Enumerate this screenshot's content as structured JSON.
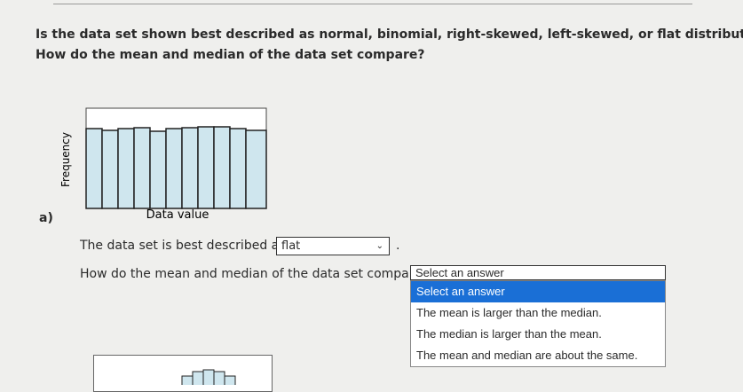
{
  "question": {
    "line1": "Is the data set shown best described as normal, binomial, right-skewed, left-skewed, or flat distribution?",
    "line2": "How do the mean and median of the data set compare?"
  },
  "histogram": {
    "y_label": "Frequency",
    "x_label": "Data value"
  },
  "part": "a)",
  "answer1": {
    "prompt": "The data set is best described as",
    "selected": "flat",
    "end": "."
  },
  "answer2": {
    "prompt": "How do the mean and median of the data set compare?",
    "selected": "Select an answer",
    "options": [
      "Select an answer",
      "The mean is larger than the median.",
      "The median is larger than the mean.",
      "The mean and median are about the same."
    ]
  }
}
